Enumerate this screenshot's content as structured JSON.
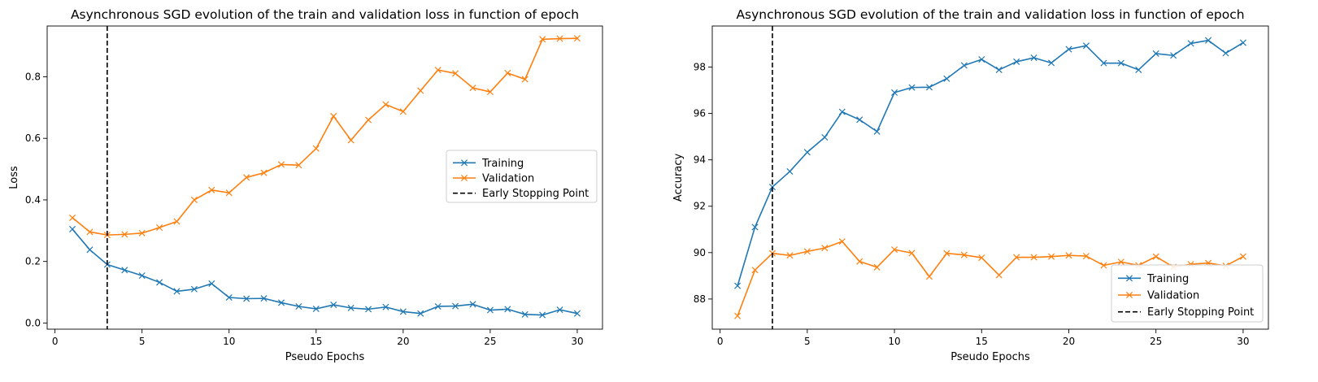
{
  "chart_data": [
    {
      "type": "line",
      "title": "Asynchronous SGD evolution of the train and validation loss in function of epoch",
      "xlabel": "Pseudo Epochs",
      "ylabel": "Loss",
      "xlim": [
        -0.45,
        31.45
      ],
      "ylim": [
        -0.02,
        0.965
      ],
      "xticks": [
        0,
        5,
        10,
        15,
        20,
        25,
        30
      ],
      "yticks": [
        0.0,
        0.2,
        0.4,
        0.6,
        0.8
      ],
      "ytick_labels": [
        "0.0",
        "0.2",
        "0.4",
        "0.6",
        "0.8"
      ],
      "grid": false,
      "legend_position": "center-right",
      "x": [
        1,
        2,
        3,
        4,
        5,
        6,
        7,
        8,
        9,
        10,
        11,
        12,
        13,
        14,
        15,
        16,
        17,
        18,
        19,
        20,
        21,
        22,
        23,
        24,
        25,
        26,
        27,
        28,
        29,
        30
      ],
      "series": [
        {
          "name": "Training",
          "color": "#1f77b4",
          "marker": "x",
          "values": [
            0.305,
            0.238,
            0.19,
            0.172,
            0.154,
            0.132,
            0.103,
            0.11,
            0.128,
            0.083,
            0.079,
            0.08,
            0.066,
            0.054,
            0.046,
            0.059,
            0.049,
            0.045,
            0.052,
            0.037,
            0.031,
            0.054,
            0.055,
            0.061,
            0.042,
            0.045,
            0.028,
            0.026,
            0.043,
            0.031
          ]
        },
        {
          "name": "Validation",
          "color": "#ff7f0e",
          "marker": "x",
          "values": [
            0.342,
            0.296,
            0.286,
            0.288,
            0.292,
            0.31,
            0.33,
            0.4,
            0.432,
            0.423,
            0.473,
            0.488,
            0.515,
            0.513,
            0.567,
            0.672,
            0.594,
            0.66,
            0.71,
            0.687,
            0.755,
            0.822,
            0.811,
            0.764,
            0.751,
            0.812,
            0.792,
            0.922,
            0.924,
            0.925
          ]
        }
      ],
      "vline": {
        "name": "Early Stopping Point",
        "x": 3,
        "color": "#000000",
        "style": "dashed"
      }
    },
    {
      "type": "line",
      "title": "Asynchronous SGD evolution of the train and validation loss in function of epoch",
      "xlabel": "Pseudo Epochs",
      "ylabel": "Accuracy",
      "xlim": [
        -0.45,
        31.45
      ],
      "ylim": [
        86.7,
        99.77
      ],
      "xticks": [
        0,
        5,
        10,
        15,
        20,
        25,
        30
      ],
      "yticks": [
        88,
        90,
        92,
        94,
        96,
        98
      ],
      "ytick_labels": [
        "88",
        "90",
        "92",
        "94",
        "96",
        "98"
      ],
      "grid": false,
      "legend_position": "lower-right",
      "x": [
        1,
        2,
        3,
        4,
        5,
        6,
        7,
        8,
        9,
        10,
        11,
        12,
        13,
        14,
        15,
        16,
        17,
        18,
        19,
        20,
        21,
        22,
        23,
        24,
        25,
        26,
        27,
        28,
        29,
        30
      ],
      "series": [
        {
          "name": "Training",
          "color": "#1f77b4",
          "marker": "x",
          "values": [
            88.57,
            91.1,
            92.83,
            93.5,
            94.33,
            94.97,
            96.07,
            95.73,
            95.22,
            96.9,
            97.12,
            97.13,
            97.5,
            98.07,
            98.33,
            97.88,
            98.23,
            98.4,
            98.18,
            98.77,
            98.92,
            98.17,
            98.17,
            97.88,
            98.58,
            98.5,
            99.02,
            99.15,
            98.6,
            99.05
          ]
        },
        {
          "name": "Validation",
          "color": "#ff7f0e",
          "marker": "x",
          "values": [
            87.27,
            89.25,
            89.97,
            89.88,
            90.05,
            90.2,
            90.48,
            89.62,
            89.37,
            90.13,
            89.98,
            88.97,
            89.97,
            89.9,
            89.78,
            89.03,
            89.8,
            89.8,
            89.83,
            89.88,
            89.85,
            89.45,
            89.6,
            89.45,
            89.83,
            89.38,
            89.5,
            89.55,
            89.43,
            89.83
          ]
        }
      ],
      "vline": {
        "name": "Early Stopping Point",
        "x": 3,
        "color": "#000000",
        "style": "dashed"
      }
    }
  ]
}
